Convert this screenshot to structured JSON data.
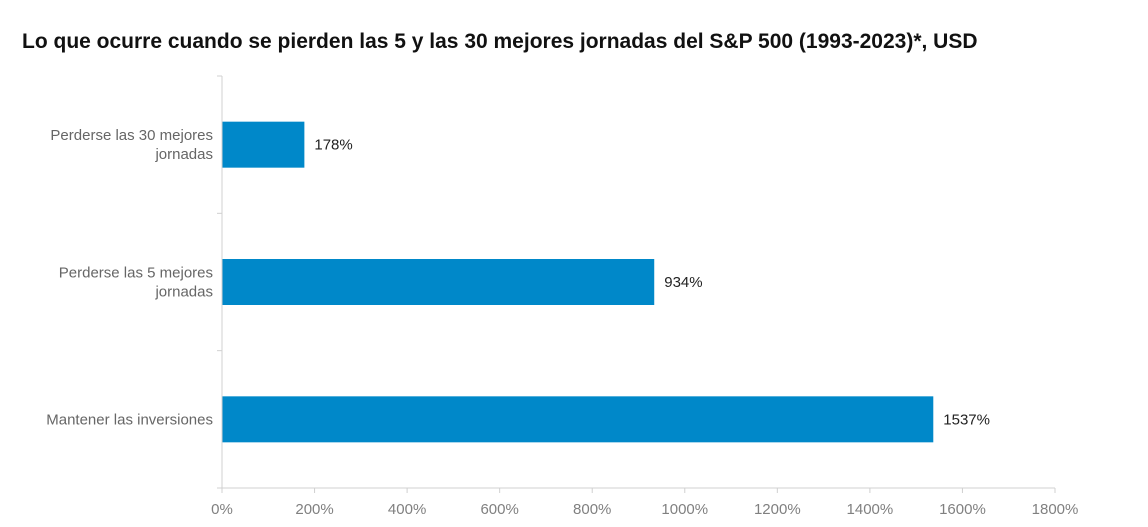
{
  "chart_data": {
    "type": "bar",
    "orientation": "horizontal",
    "title": "Lo que ocurre cuando se pierden las 5 y las 30 mejores jornadas del S&P 500 (1993-2023)*, USD",
    "categories": [
      [
        "Perderse las 30 mejores",
        "jornadas"
      ],
      [
        "Perderse las 5 mejores",
        "jornadas"
      ],
      [
        "Mantener las inversiones"
      ]
    ],
    "values": [
      178,
      934,
      1537
    ],
    "data_labels": [
      "178%",
      "934%",
      "1537%"
    ],
    "xlim": [
      0,
      1800
    ],
    "xticks": [
      0,
      200,
      400,
      600,
      800,
      1000,
      1200,
      1400,
      1600,
      1800
    ],
    "xtick_labels": [
      "0%",
      "200%",
      "400%",
      "600%",
      "800%",
      "1000%",
      "1200%",
      "1400%",
      "1600%",
      "1800%"
    ],
    "bar_color": "#0088c9",
    "axis_color": "#d0d0d0",
    "legend": "none",
    "grid": false
  }
}
